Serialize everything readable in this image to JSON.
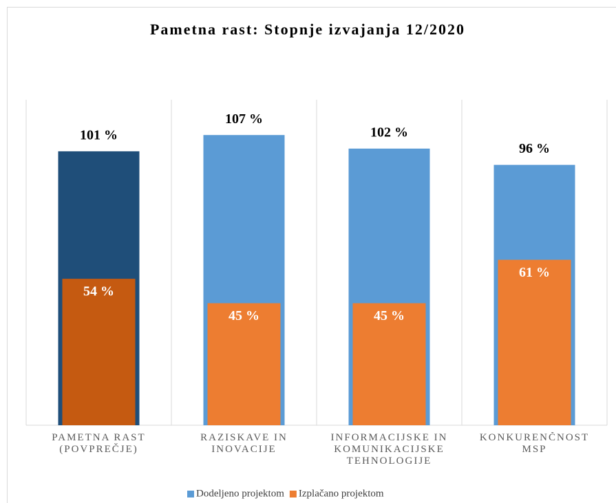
{
  "chart_data": {
    "type": "bar",
    "title": "Pametna rast: Stopnje izvajanja 12/2020",
    "categories": [
      "PAMETNA RAST (POVPREČJE)",
      "RAZISKAVE IN INOVACIJE",
      "INFORMACIJSKE IN KOMUNIKACIJSKE TEHNOLOGIJE",
      "KONKURENČNOST MSP"
    ],
    "series": [
      {
        "name": "Dodeljeno projektom",
        "color": "#5b9bd5",
        "point_colors": [
          "#1f4e79",
          "#5b9bd5",
          "#5b9bd5",
          "#5b9bd5"
        ],
        "values": [
          101,
          107,
          102,
          96
        ],
        "value_labels": [
          "101 %",
          "107 %",
          "102 %",
          "96 %"
        ]
      },
      {
        "name": "Izplačano projektom",
        "color": "#ed7d31",
        "point_colors": [
          "#c55a11",
          "#ed7d31",
          "#ed7d31",
          "#ed7d31"
        ],
        "values": [
          54,
          45,
          45,
          61
        ],
        "value_labels": [
          "54 %",
          "45 %",
          "45 %",
          "61 %"
        ]
      }
    ],
    "overlap": true,
    "ylim": [
      0,
      120
    ],
    "grid": "vertical",
    "legend": "bottom"
  }
}
